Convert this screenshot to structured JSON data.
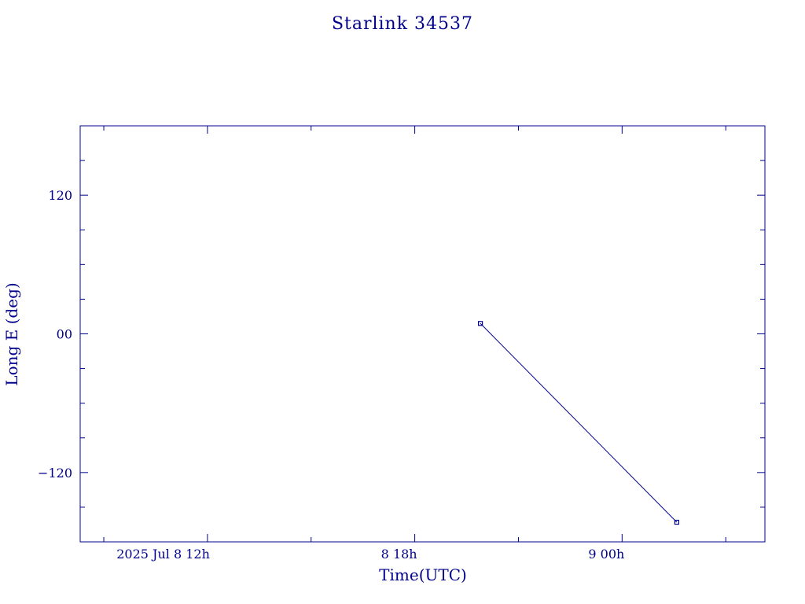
{
  "chart_data": {
    "type": "line",
    "title": "Starlink 34537",
    "xlabel": "Time(UTC)",
    "ylabel": "Long E (deg)",
    "xlim": [
      "2025-07-08T08:19",
      "2025-07-09T04:08"
    ],
    "ylim": [
      -180,
      180
    ],
    "x_ticks": [
      {
        "value": "2025-07-08T12:00",
        "label": "2025 Jul  8  12h"
      },
      {
        "value": "2025-07-08T18:00",
        "label": "8  18h"
      },
      {
        "value": "2025-07-09T00:00",
        "label": "9  00h"
      }
    ],
    "y_ticks": [
      {
        "value": 120,
        "label": "120"
      },
      {
        "value": 0,
        "label": "00"
      },
      {
        "value": -120,
        "label": "−120"
      }
    ],
    "grid": false,
    "series": [
      {
        "points": [
          {
            "x": "2025-07-08T19:54",
            "y": 9
          },
          {
            "x": "2025-07-09T01:35",
            "y": -163
          }
        ]
      }
    ]
  },
  "colors": {
    "ink": "#00008b",
    "background": "#ffffff"
  }
}
